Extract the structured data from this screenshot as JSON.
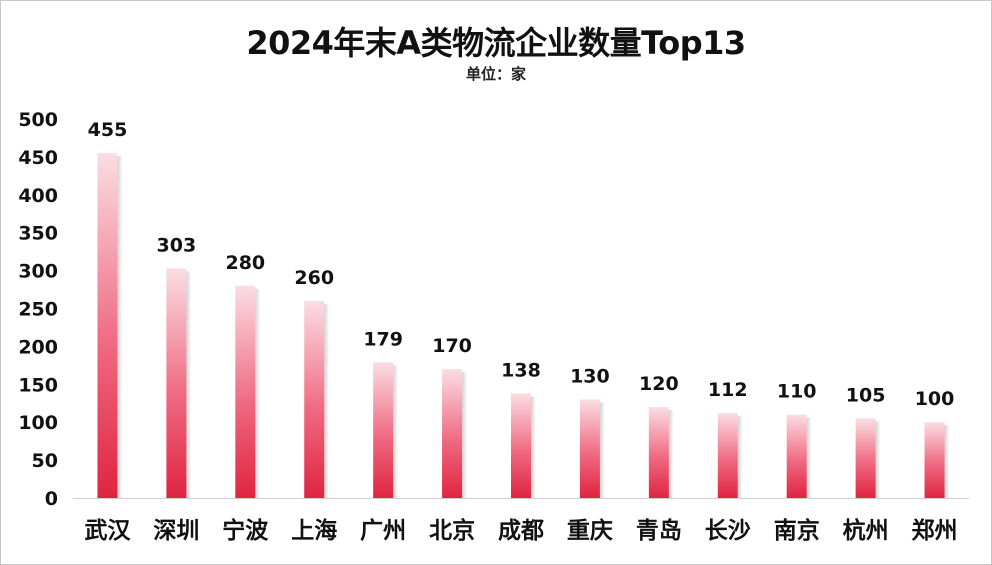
{
  "chart_data": {
    "type": "bar",
    "title": "2024年末A类物流企业数量Top13",
    "subtitle": "单位：家",
    "categories": [
      "武汉",
      "深圳",
      "宁波",
      "上海",
      "广州",
      "北京",
      "成都",
      "重庆",
      "青岛",
      "长沙",
      "南京",
      "杭州",
      "郑州"
    ],
    "values": [
      455,
      303,
      280,
      260,
      179,
      170,
      138,
      130,
      120,
      112,
      110,
      105,
      100
    ],
    "ylim": [
      0,
      500
    ],
    "yticks": [
      0,
      50,
      100,
      150,
      200,
      250,
      300,
      350,
      400,
      450,
      500
    ],
    "grid": false,
    "legend": "none",
    "colors": {
      "bar_top": "#fbdde3",
      "bar_bottom": "#e02440",
      "axis": "#d0d0d0"
    }
  }
}
